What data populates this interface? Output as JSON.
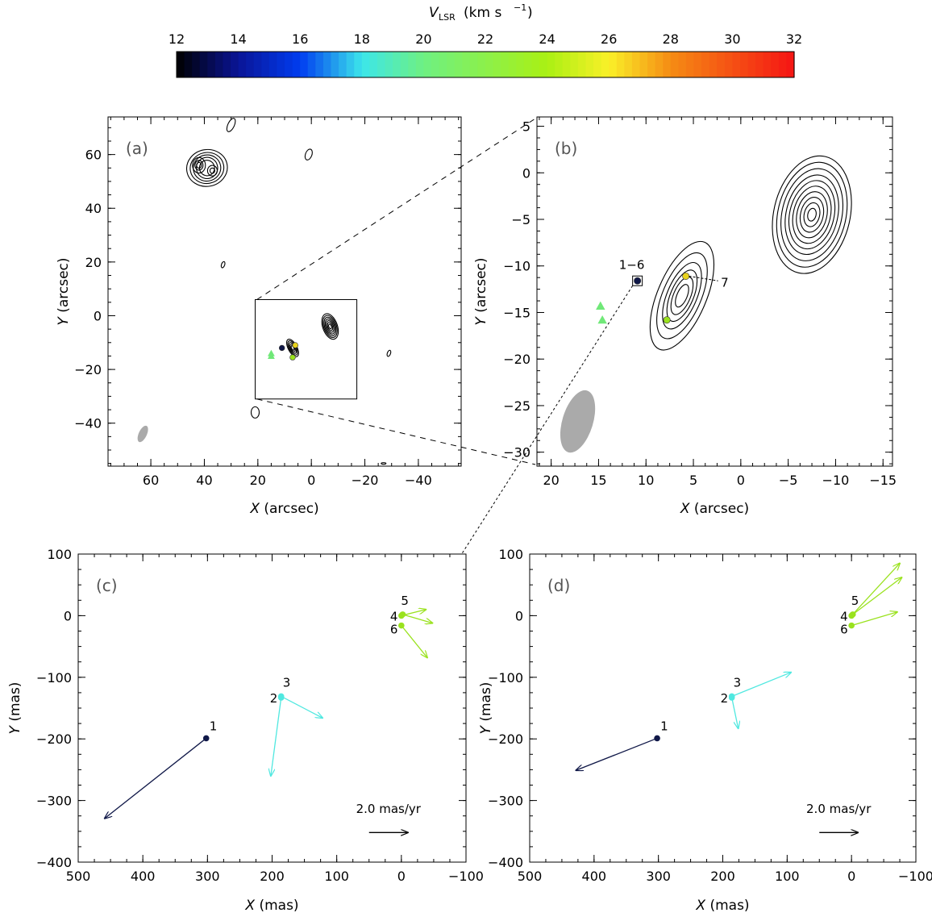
{
  "colorbar": {
    "label_main": "V",
    "label_sub": "LSR",
    "label_unit": "(km s",
    "label_exp": "−1",
    "label_close": ")",
    "ticks": [
      "12",
      "14",
      "16",
      "18",
      "20",
      "22",
      "24",
      "26",
      "28",
      "30",
      "32"
    ],
    "range": [
      12,
      32
    ]
  },
  "chart_data": [
    {
      "panel": "a",
      "type": "scatter",
      "panel_label": "(a)",
      "xlabel_var": "X",
      "xlabel_unit": "(arcsec)",
      "ylabel_var": "Y",
      "ylabel_unit": "(arcsec)",
      "xlim": [
        76,
        -56
      ],
      "ylim": [
        -56,
        74
      ],
      "xticks": [
        "60",
        "40",
        "20",
        "0",
        "−20",
        "−40"
      ],
      "yticks": [
        "60",
        "40",
        "20",
        "0",
        "−20",
        "−40"
      ],
      "points": [
        {
          "x": 11,
          "y": -12,
          "color": "#101848",
          "marker": "circle"
        },
        {
          "x": 15,
          "y": -14,
          "color": "#70e878",
          "marker": "triangle"
        },
        {
          "x": 15,
          "y": -15,
          "color": "#70e878",
          "marker": "triangle"
        },
        {
          "x": 7,
          "y": -15.5,
          "color": "#9ae21e",
          "marker": "circle"
        },
        {
          "x": 6,
          "y": -11,
          "color": "#e8d21c",
          "marker": "circle"
        }
      ],
      "zoom_box": {
        "x": [
          21,
          -17
        ],
        "y": [
          -31,
          6
        ]
      }
    },
    {
      "panel": "b",
      "type": "scatter",
      "panel_label": "(b)",
      "xlabel_var": "X",
      "xlabel_unit": "(arcsec)",
      "ylabel_var": "Y",
      "ylabel_unit": "(arcsec)",
      "xlim": [
        21.5,
        -16
      ],
      "ylim": [
        -31.5,
        6
      ],
      "xticks": [
        "20",
        "15",
        "10",
        "5",
        "0",
        "−5",
        "−10",
        "−15"
      ],
      "yticks": [
        "5",
        "0",
        "−5",
        "−10",
        "−15",
        "−20",
        "−25",
        "−30"
      ],
      "points": [
        {
          "x": 10.9,
          "y": -11.6,
          "color": "#101848",
          "marker": "circle"
        },
        {
          "x": 14.8,
          "y": -14.3,
          "color": "#70e878",
          "marker": "triangle"
        },
        {
          "x": 14.6,
          "y": -15.8,
          "color": "#70e878",
          "marker": "triangle"
        },
        {
          "x": 7.8,
          "y": -15.8,
          "color": "#9ae21e",
          "marker": "circle"
        },
        {
          "x": 5.8,
          "y": -11.1,
          "color": "#e8d21c",
          "marker": "circle"
        }
      ],
      "labels": [
        {
          "text": "1−6",
          "x": 11.5,
          "y": -9.8
        },
        {
          "text": "7",
          "x": 1.7,
          "y": -11.7
        }
      ]
    },
    {
      "panel": "c",
      "type": "scatter",
      "panel_label": "(c)",
      "xlabel_var": "X",
      "xlabel_unit": "(mas)",
      "ylabel_var": "Y",
      "ylabel_unit": "(mas)",
      "xlim": [
        500,
        -100
      ],
      "ylim": [
        -400,
        100
      ],
      "xticks": [
        "500",
        "400",
        "300",
        "200",
        "100",
        "0",
        "−100"
      ],
      "yticks": [
        "100",
        "0",
        "−100",
        "−200",
        "−300",
        "−400"
      ],
      "scale_label": "2.0 mas/yr",
      "spots": [
        {
          "id": "1",
          "x": 302,
          "y": -199,
          "color": "#101848",
          "vectors": [
            [
              459,
              -329
            ]
          ]
        },
        {
          "id": "2",
          "x": 186,
          "y": -133,
          "color": "#50e8e0",
          "vectors": [
            [
              202,
              -260
            ]
          ]
        },
        {
          "id": "3",
          "x": 186,
          "y": -131,
          "color": "#50e8e0",
          "vectors": [
            [
              122,
              -166
            ]
          ]
        },
        {
          "id": "4",
          "x": 0,
          "y": 0,
          "color": "#9ae21e",
          "vectors": [
            [
              -38,
              10
            ]
          ]
        },
        {
          "id": "5",
          "x": -2,
          "y": 2,
          "color": "#9ae21e",
          "vectors": [
            [
              -48,
              -12
            ]
          ]
        },
        {
          "id": "6",
          "x": 0,
          "y": -16,
          "color": "#9ae21e",
          "vectors": [
            [
              -40,
              -68
            ]
          ]
        }
      ]
    },
    {
      "panel": "d",
      "type": "scatter",
      "panel_label": "(d)",
      "xlabel_var": "X",
      "xlabel_unit": "(mas)",
      "ylabel_var": "Y",
      "ylabel_unit": "(mas)",
      "xlim": [
        500,
        -100
      ],
      "ylim": [
        -400,
        100
      ],
      "xticks": [
        "500",
        "400",
        "300",
        "200",
        "100",
        "0",
        "−100"
      ],
      "yticks": [
        "100",
        "0",
        "−100",
        "−200",
        "−300",
        "−400"
      ],
      "scale_label": "2.0 mas/yr",
      "spots": [
        {
          "id": "1",
          "x": 302,
          "y": -199,
          "color": "#101848",
          "vectors": [
            [
              428,
              -251
            ]
          ]
        },
        {
          "id": "2",
          "x": 186,
          "y": -133,
          "color": "#50e8e0",
          "vectors": [
            [
              176,
              -183
            ]
          ]
        },
        {
          "id": "3",
          "x": 186,
          "y": -131,
          "color": "#50e8e0",
          "vectors": [
            [
              94,
              -92
            ]
          ]
        },
        {
          "id": "4",
          "x": 0,
          "y": 0,
          "color": "#9ae21e",
          "vectors": [
            [
              -75,
              85
            ]
          ]
        },
        {
          "id": "5",
          "x": -2,
          "y": 2,
          "color": "#9ae21e",
          "vectors": [
            [
              -78,
              62
            ]
          ]
        },
        {
          "id": "6",
          "x": 0,
          "y": -16,
          "color": "#9ae21e",
          "vectors": [
            [
              -71,
              6
            ]
          ]
        }
      ]
    }
  ]
}
